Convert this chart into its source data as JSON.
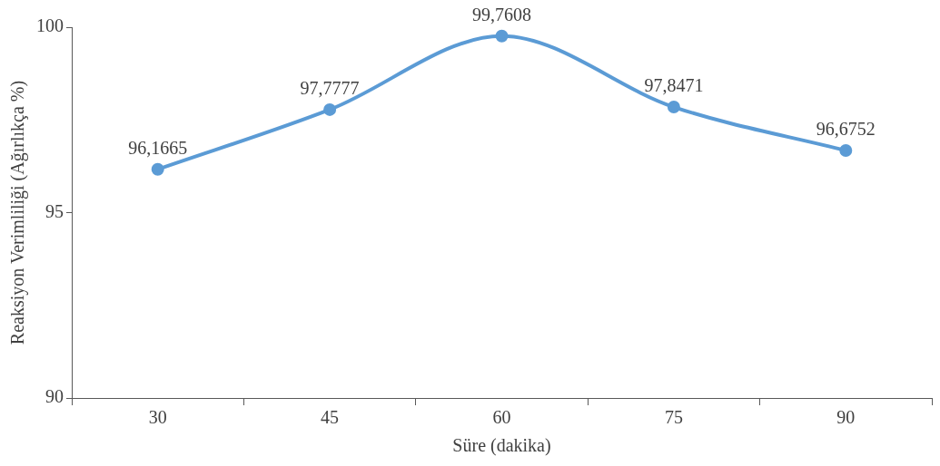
{
  "chart_data": {
    "type": "line",
    "xlabel": "Süre (dakika)",
    "ylabel": "Reaksiyon Verimliliği (Ağırlıkça %)",
    "categories": [
      "30",
      "45",
      "60",
      "75",
      "90"
    ],
    "series": [
      {
        "color": "#5b9bd5",
        "values": [
          96.1665,
          97.7777,
          99.7608,
          97.8471,
          96.6752
        ],
        "value_labels": [
          "96,1665",
          "97,7777",
          "99,7608",
          "97,8471",
          "96,6752"
        ]
      }
    ],
    "ylim": [
      90,
      100
    ],
    "yticks": [
      90,
      95,
      100
    ],
    "grid": false,
    "legend": false,
    "marker": "circle",
    "line_style": "solid"
  }
}
